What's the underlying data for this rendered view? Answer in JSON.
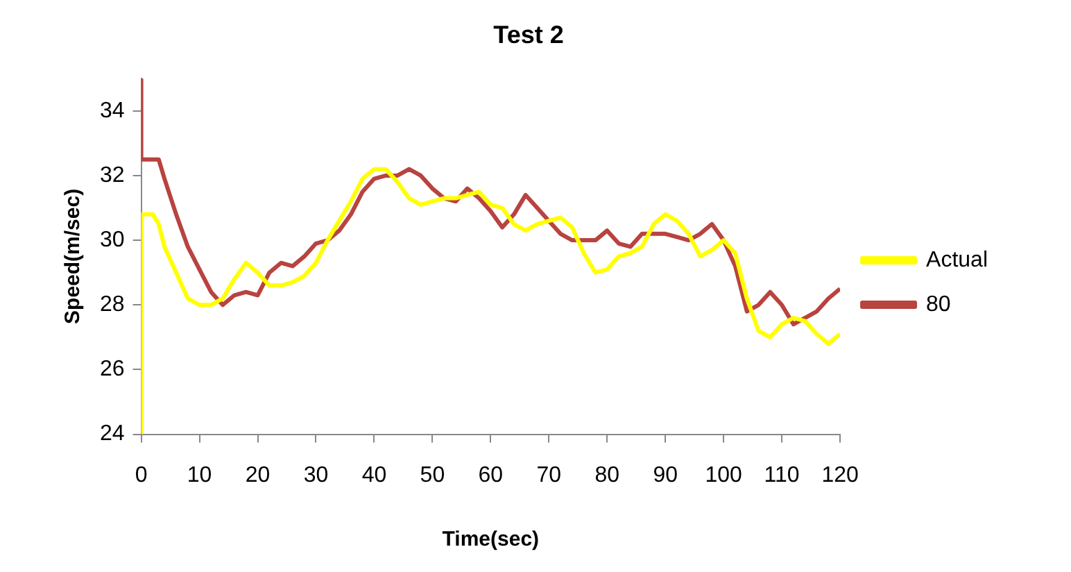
{
  "chart_data": {
    "type": "line",
    "title": "Test 2",
    "xlabel": "Time(sec)",
    "ylabel": "Speed(m/sec)",
    "xlim": [
      0,
      120
    ],
    "xticks": [
      0,
      10,
      20,
      30,
      40,
      50,
      60,
      70,
      80,
      90,
      100,
      110,
      120
    ],
    "ylim": [
      24,
      35
    ],
    "yticks": [
      24,
      26,
      28,
      30,
      32,
      34
    ],
    "grid": false,
    "legend": "right",
    "marker": "none",
    "line_style": "solid",
    "series": [
      {
        "name": "Actual",
        "color": "#ffff00",
        "x": [
          0,
          0,
          2,
          3,
          4,
          6,
          8,
          10,
          12,
          14,
          16,
          18,
          20,
          22,
          24,
          26,
          28,
          30,
          32,
          34,
          36,
          38,
          40,
          42,
          44,
          46,
          48,
          50,
          52,
          54,
          56,
          58,
          60,
          62,
          64,
          66,
          68,
          70,
          72,
          74,
          76,
          78,
          80,
          82,
          84,
          86,
          88,
          90,
          92,
          94,
          96,
          98,
          100,
          102,
          104,
          106,
          108,
          110,
          112,
          114,
          116,
          118,
          120
        ],
        "values": [
          24,
          30.8,
          30.8,
          30.5,
          29.8,
          29.0,
          28.2,
          28.0,
          28.0,
          28.2,
          28.8,
          29.3,
          29.0,
          28.6,
          28.6,
          28.7,
          28.9,
          29.3,
          30.0,
          30.6,
          31.2,
          31.9,
          32.2,
          32.2,
          31.8,
          31.3,
          31.1,
          31.2,
          31.3,
          31.3,
          31.4,
          31.5,
          31.1,
          31.0,
          30.5,
          30.3,
          30.5,
          30.6,
          30.7,
          30.4,
          29.6,
          29.0,
          29.1,
          29.5,
          29.6,
          29.8,
          30.5,
          30.8,
          30.6,
          30.2,
          29.5,
          29.7,
          30.0,
          29.6,
          28.2,
          27.2,
          27.0,
          27.4,
          27.6,
          27.5,
          27.1,
          26.8,
          27.1
        ]
      },
      {
        "name": "80",
        "color": "#b8433f",
        "x": [
          0,
          0,
          3,
          4,
          6,
          8,
          10,
          12,
          14,
          16,
          18,
          20,
          22,
          24,
          26,
          28,
          30,
          32,
          34,
          36,
          38,
          40,
          42,
          44,
          46,
          48,
          50,
          52,
          54,
          56,
          58,
          60,
          62,
          64,
          66,
          68,
          70,
          72,
          74,
          76,
          78,
          80,
          82,
          84,
          86,
          88,
          90,
          92,
          94,
          96,
          98,
          100,
          102,
          104,
          106,
          108,
          110,
          112,
          114,
          116,
          118,
          120
        ],
        "values": [
          35,
          32.5,
          32.5,
          31.9,
          30.8,
          29.8,
          29.1,
          28.4,
          28.0,
          28.3,
          28.4,
          28.3,
          29.0,
          29.3,
          29.2,
          29.5,
          29.9,
          30.0,
          30.3,
          30.8,
          31.5,
          31.9,
          32.0,
          32.0,
          32.2,
          32.0,
          31.6,
          31.3,
          31.2,
          31.6,
          31.3,
          30.9,
          30.4,
          30.8,
          31.4,
          31.0,
          30.6,
          30.2,
          30.0,
          30.0,
          30.0,
          30.3,
          29.9,
          29.8,
          30.2,
          30.2,
          30.2,
          30.1,
          30.0,
          30.2,
          30.5,
          30.0,
          29.2,
          27.8,
          28.0,
          28.4,
          28.0,
          27.4,
          27.6,
          27.8,
          28.2,
          28.5
        ]
      }
    ]
  }
}
